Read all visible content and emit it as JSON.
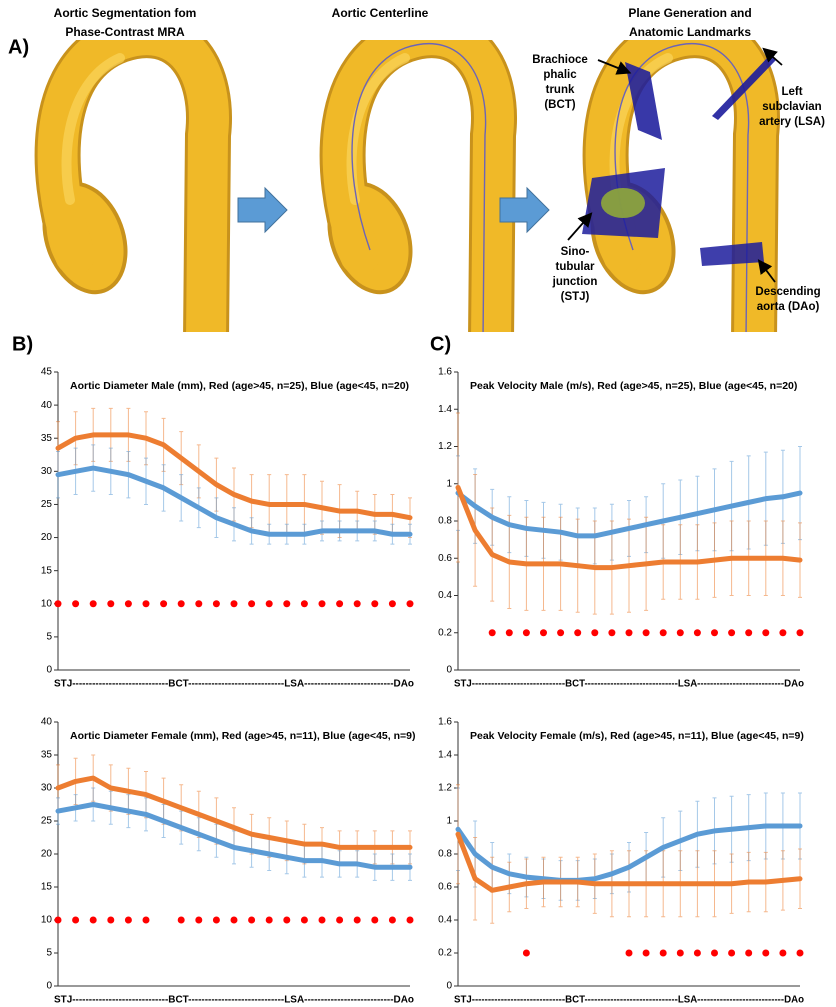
{
  "panel_a": {
    "label": "A)",
    "steps": [
      {
        "title": [
          "Aortic Segmentation fom",
          "Phase-Contrast MRA"
        ]
      },
      {
        "title": [
          "Aortic Centerline"
        ]
      },
      {
        "title": [
          "Plane Generation and",
          "Anatomic Landmarks"
        ]
      }
    ],
    "landmarks": [
      {
        "label": [
          "Brachioce",
          "phalic",
          "trunk",
          "(BCT)"
        ]
      },
      {
        "label": [
          "Left",
          "subclavian",
          "artery (LSA)"
        ]
      },
      {
        "label": [
          "Sino-",
          "tubular",
          "junction",
          "(STJ)"
        ]
      },
      {
        "label": [
          "Descending",
          "aorta (DAo)"
        ]
      }
    ]
  },
  "panel_labels": [
    "B)",
    "C)"
  ],
  "chart_data": [
    {
      "type": "line",
      "title": "Aortic Diameter Male (mm), Red (age>45, n=25), Blue (age<45, n=20)",
      "xlabel": "STJ-----------------------------BCT-----------------------------LSA---------------------------DAo",
      "x": [
        0,
        5,
        10,
        15,
        20,
        25,
        30,
        35,
        40,
        45,
        50,
        55,
        60,
        65,
        70,
        75,
        80,
        85,
        90,
        95,
        100
      ],
      "xlim": [
        0,
        100
      ],
      "ylim": [
        0,
        45
      ],
      "yticks": [
        0,
        5,
        10,
        15,
        20,
        25,
        30,
        35,
        40,
        45
      ],
      "series": [
        {
          "color": "#ed7d31",
          "kind": "line",
          "values": [
            33.5,
            35,
            35.5,
            35.5,
            35.5,
            35,
            34,
            32,
            30,
            28,
            26.5,
            25.5,
            25,
            25,
            25,
            24.5,
            24,
            24,
            23.5,
            23.5,
            23
          ],
          "errors": [
            4,
            4,
            4,
            4,
            4,
            4,
            4,
            4,
            4,
            4,
            4,
            4,
            4.5,
            4.5,
            4.5,
            4,
            4,
            3,
            3,
            3,
            3
          ]
        },
        {
          "color": "#5b9bd5",
          "kind": "line",
          "values": [
            29.5,
            30,
            30.5,
            30,
            29.5,
            28.5,
            27.5,
            26,
            24.5,
            23,
            22,
            21,
            20.5,
            20.5,
            20.5,
            21,
            21,
            21,
            21,
            20.5,
            20.5
          ],
          "errors": [
            3.5,
            3.5,
            3.5,
            3.5,
            3.5,
            3.5,
            3.5,
            3.5,
            3,
            3,
            2.5,
            2,
            1.5,
            1.5,
            1.5,
            1.5,
            1.5,
            1.5,
            1.5,
            1.5,
            1.5
          ]
        },
        {
          "color": "#ff0000",
          "kind": "dots",
          "values": [
            10,
            10,
            10,
            10,
            10,
            10,
            10,
            10,
            10,
            10,
            10,
            10,
            10,
            10,
            10,
            10,
            10,
            10,
            10,
            10,
            10
          ]
        }
      ]
    },
    {
      "type": "line",
      "title": "Peak Velocity Male (m/s), Red (age>45, n=25), Blue (age<45, n=20)",
      "xlabel": "STJ-----------------------------BCT-----------------------------LSA---------------------------DAo",
      "x": [
        0,
        5,
        10,
        15,
        20,
        25,
        30,
        35,
        40,
        45,
        50,
        55,
        60,
        65,
        70,
        75,
        80,
        85,
        90,
        95,
        100
      ],
      "xlim": [
        0,
        100
      ],
      "ylim": [
        0,
        1.6
      ],
      "yticks": [
        0,
        0.2,
        0.4,
        0.6,
        0.8,
        1,
        1.2,
        1.4,
        1.6
      ],
      "series": [
        {
          "color": "#5b9bd5",
          "kind": "line",
          "values": [
            0.95,
            0.88,
            0.82,
            0.78,
            0.76,
            0.75,
            0.74,
            0.72,
            0.72,
            0.74,
            0.76,
            0.78,
            0.8,
            0.82,
            0.84,
            0.86,
            0.88,
            0.9,
            0.92,
            0.93,
            0.95
          ],
          "errors": [
            0.2,
            0.2,
            0.15,
            0.15,
            0.15,
            0.15,
            0.15,
            0.15,
            0.15,
            0.15,
            0.15,
            0.15,
            0.2,
            0.2,
            0.2,
            0.22,
            0.24,
            0.25,
            0.25,
            0.25,
            0.25
          ]
        },
        {
          "color": "#ed7d31",
          "kind": "line",
          "values": [
            0.98,
            0.75,
            0.62,
            0.58,
            0.57,
            0.57,
            0.57,
            0.56,
            0.55,
            0.55,
            0.56,
            0.57,
            0.58,
            0.58,
            0.58,
            0.59,
            0.6,
            0.6,
            0.6,
            0.6,
            0.59
          ],
          "errors": [
            0.4,
            0.3,
            0.25,
            0.25,
            0.25,
            0.25,
            0.25,
            0.25,
            0.25,
            0.25,
            0.25,
            0.25,
            0.2,
            0.2,
            0.2,
            0.2,
            0.2,
            0.2,
            0.2,
            0.2,
            0.2
          ]
        },
        {
          "color": "#ff0000",
          "kind": "dots",
          "values": [
            null,
            null,
            0.2,
            0.2,
            0.2,
            0.2,
            0.2,
            0.2,
            0.2,
            0.2,
            0.2,
            0.2,
            0.2,
            0.2,
            0.2,
            0.2,
            0.2,
            0.2,
            0.2,
            0.2,
            0.2
          ]
        }
      ]
    },
    {
      "type": "line",
      "title": "Aortic Diameter Female (mm), Red (age>45, n=11), Blue (age<45, n=9)",
      "xlabel": "STJ-----------------------------BCT-----------------------------LSA---------------------------DAo",
      "x": [
        0,
        5,
        10,
        15,
        20,
        25,
        30,
        35,
        40,
        45,
        50,
        55,
        60,
        65,
        70,
        75,
        80,
        85,
        90,
        95,
        100
      ],
      "xlim": [
        0,
        100
      ],
      "ylim": [
        0,
        40
      ],
      "yticks": [
        0,
        5,
        10,
        15,
        20,
        25,
        30,
        35,
        40
      ],
      "series": [
        {
          "color": "#ed7d31",
          "kind": "line",
          "values": [
            30,
            31,
            31.5,
            30,
            29.5,
            29,
            28,
            27,
            26,
            25,
            24,
            23,
            22.5,
            22,
            21.5,
            21.5,
            21,
            21,
            21,
            21,
            21
          ],
          "errors": [
            3.5,
            3.5,
            3.5,
            3.5,
            3.5,
            3.5,
            3.5,
            3.5,
            3.5,
            3.5,
            3,
            3,
            3,
            3,
            3,
            2.5,
            2.5,
            2.5,
            2.5,
            2.5,
            2.5
          ]
        },
        {
          "color": "#5b9bd5",
          "kind": "line",
          "values": [
            26.5,
            27,
            27.5,
            27,
            26.5,
            26,
            25,
            24,
            23,
            22,
            21,
            20.5,
            20,
            19.5,
            19,
            19,
            18.5,
            18.5,
            18,
            18,
            18
          ],
          "errors": [
            2,
            2,
            2.5,
            2.5,
            2.5,
            2.5,
            2.5,
            2.5,
            2.5,
            2.5,
            2.5,
            2.5,
            2.5,
            2.5,
            2.5,
            2.5,
            2,
            2,
            2,
            2,
            2
          ]
        },
        {
          "color": "#ff0000",
          "kind": "dots",
          "values": [
            10,
            10,
            10,
            10,
            10,
            10,
            null,
            10,
            10,
            10,
            10,
            10,
            10,
            10,
            10,
            10,
            10,
            10,
            10,
            10,
            10
          ]
        }
      ]
    },
    {
      "type": "line",
      "title": "Peak Velocity Female (m/s), Red (age>45, n=11), Blue (age<45, n=9)",
      "xlabel": "STJ-----------------------------BCT-----------------------------LSA---------------------------DAo",
      "x": [
        0,
        5,
        10,
        15,
        20,
        25,
        30,
        35,
        40,
        45,
        50,
        55,
        60,
        65,
        70,
        75,
        80,
        85,
        90,
        95,
        100
      ],
      "xlim": [
        0,
        100
      ],
      "ylim": [
        0,
        1.6
      ],
      "yticks": [
        0,
        0.2,
        0.4,
        0.6,
        0.8,
        1,
        1.2,
        1.4,
        1.6
      ],
      "series": [
        {
          "color": "#5b9bd5",
          "kind": "line",
          "values": [
            0.95,
            0.8,
            0.72,
            0.68,
            0.66,
            0.65,
            0.64,
            0.64,
            0.65,
            0.68,
            0.72,
            0.78,
            0.84,
            0.88,
            0.92,
            0.94,
            0.95,
            0.96,
            0.97,
            0.97,
            0.97
          ],
          "errors": [
            0.25,
            0.2,
            0.15,
            0.12,
            0.12,
            0.12,
            0.12,
            0.12,
            0.12,
            0.12,
            0.15,
            0.15,
            0.18,
            0.18,
            0.2,
            0.2,
            0.2,
            0.2,
            0.2,
            0.2,
            0.2
          ]
        },
        {
          "color": "#ed7d31",
          "kind": "line",
          "values": [
            0.92,
            0.65,
            0.58,
            0.6,
            0.62,
            0.63,
            0.63,
            0.63,
            0.62,
            0.62,
            0.62,
            0.62,
            0.62,
            0.62,
            0.62,
            0.62,
            0.62,
            0.63,
            0.63,
            0.64,
            0.65
          ],
          "errors": [
            0.3,
            0.25,
            0.2,
            0.15,
            0.15,
            0.15,
            0.15,
            0.15,
            0.18,
            0.2,
            0.2,
            0.2,
            0.2,
            0.2,
            0.2,
            0.2,
            0.18,
            0.18,
            0.18,
            0.18,
            0.18
          ]
        },
        {
          "color": "#ff0000",
          "kind": "dots",
          "values": [
            null,
            null,
            null,
            null,
            0.2,
            null,
            null,
            null,
            null,
            null,
            0.2,
            0.2,
            0.2,
            0.2,
            0.2,
            0.2,
            0.2,
            0.2,
            0.2,
            0.2,
            0.2
          ]
        }
      ]
    }
  ]
}
